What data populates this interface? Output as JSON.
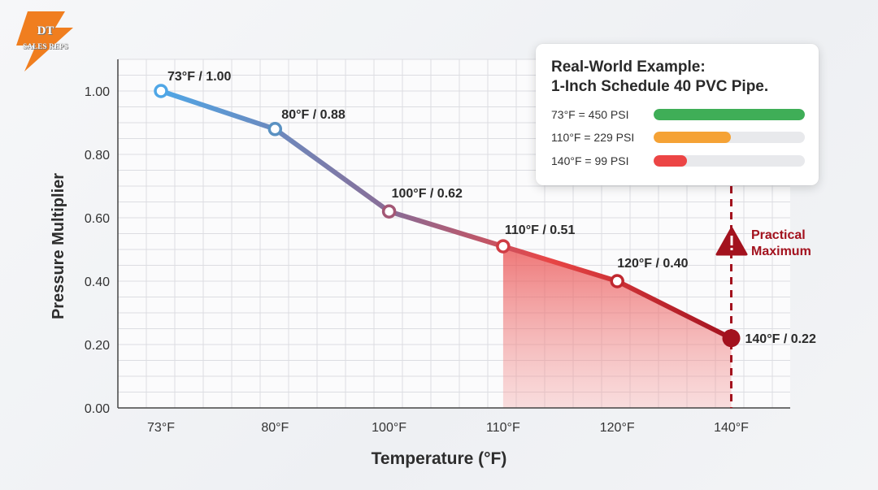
{
  "logo": {
    "line1": "DT",
    "line2": "SALES REPS",
    "color": "#f07e1f"
  },
  "chart_data": {
    "type": "line",
    "title": "",
    "xlabel": "Temperature (°F)",
    "ylabel": "Pressure Multiplier",
    "categories": [
      "73°F",
      "80°F",
      "100°F",
      "110°F",
      "120°F",
      "140°F"
    ],
    "x": [
      73,
      80,
      100,
      110,
      120,
      140
    ],
    "series": [
      {
        "name": "Pressure Multiplier",
        "values": [
          1.0,
          0.88,
          0.62,
          0.51,
          0.4,
          0.22
        ]
      }
    ],
    "point_labels": [
      "73°F / 1.00",
      "80°F / 0.88",
      "100°F / 0.62",
      "110°F / 0.51",
      "120°F / 0.40",
      "140°F / 0.22"
    ],
    "y_ticks": [
      "0.00",
      "0.20",
      "0.40",
      "0.60",
      "0.80",
      "1.00"
    ],
    "ylim": [
      0,
      1.1
    ],
    "grid": true,
    "shaded_region": {
      "from": 110,
      "to": 140
    },
    "reference_line": {
      "x": 140,
      "label_line1": "Practical",
      "label_line2": "Maximum"
    },
    "colors": {
      "start": "#4fa6e6",
      "mid": "#8d6a92",
      "hot": "#e84646",
      "end": "#a3121e"
    }
  },
  "callout": {
    "title_line1": "Real-World Example:",
    "title_line2": "1-Inch Schedule 40 PVC Pipe.",
    "rows": [
      {
        "label": "73°F = 450 PSI",
        "psi": 450,
        "color": "#3fae57"
      },
      {
        "label": "110°F = 229 PSI",
        "psi": 229,
        "color": "#f5a235"
      },
      {
        "label": "140°F = 99 PSI",
        "psi": 99,
        "color": "#ec4545"
      }
    ],
    "max_psi": 450
  }
}
